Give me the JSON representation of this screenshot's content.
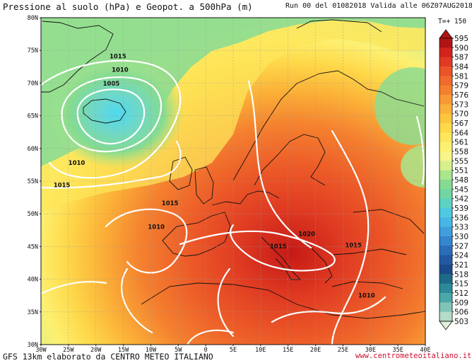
{
  "header": {
    "title": "Pressione al suolo (hPa) e Geopot. a 500hPa (m)",
    "run": "Run 00 del 01082018  Valida alle 06Z07AUG2018",
    "forecast_step": "T=+ 150"
  },
  "footer": {
    "credit": "GFS 13km elaborato da CENTRO METEO ITALIANO",
    "website": "www.centrometeoitaliano.it"
  },
  "map": {
    "lat_labels": [
      "80N",
      "75N",
      "70N",
      "65N",
      "60N",
      "55N",
      "50N",
      "45N",
      "40N",
      "35N",
      "30N"
    ],
    "lon_labels": [
      "30W",
      "25W",
      "20W",
      "15W",
      "10W",
      "5W",
      "0",
      "5E",
      "10E",
      "15E",
      "20E",
      "25E",
      "30E",
      "35E",
      "40E"
    ],
    "isobar_labels": [
      {
        "text": "1015",
        "lon": -16,
        "lat": 73.8
      },
      {
        "text": "1010",
        "lon": -15.6,
        "lat": 71.7
      },
      {
        "text": "1005",
        "lon": -17.2,
        "lat": 69.6
      },
      {
        "text": "1010",
        "lon": -23.5,
        "lat": 57.5
      },
      {
        "text": "1015",
        "lon": -26.2,
        "lat": 54.1
      },
      {
        "text": "1015",
        "lon": -6.5,
        "lat": 51.3
      },
      {
        "text": "1010",
        "lon": -9,
        "lat": 47.7
      },
      {
        "text": "1020",
        "lon": 18.4,
        "lat": 46.6
      },
      {
        "text": "1015",
        "lon": 13.2,
        "lat": 44.7
      },
      {
        "text": "1015",
        "lon": 26.9,
        "lat": 44.9
      },
      {
        "text": "1010",
        "lon": 29.3,
        "lat": 37.2
      }
    ]
  },
  "colorbar": {
    "labels": [
      "595",
      "590",
      "587",
      "584",
      "581",
      "579",
      "576",
      "573",
      "570",
      "567",
      "564",
      "561",
      "558",
      "555",
      "551",
      "548",
      "545",
      "542",
      "539",
      "536",
      "533",
      "530",
      "527",
      "524",
      "521",
      "518",
      "515",
      "512",
      "509",
      "506",
      "503"
    ],
    "colors": [
      "#b01414",
      "#d2231c",
      "#e03a22",
      "#ea5428",
      "#ef6a2c",
      "#f4802f",
      "#f89a33",
      "#fbb138",
      "#fdc63e",
      "#fed94a",
      "#fee75c",
      "#fdf071",
      "#f8f58a",
      "#d6f08c",
      "#a9e68c",
      "#85db91",
      "#6fd6a4",
      "#5cd2c3",
      "#4fc9e0",
      "#48b6e4",
      "#3f9edb",
      "#3486cf",
      "#2a6eb9",
      "#215aa2",
      "#1a4a8a",
      "#1e6a8a",
      "#2a8a9a",
      "#4aa8a8",
      "#80c4b8",
      "#b4dcc8",
      "#e0f0dc"
    ]
  }
}
